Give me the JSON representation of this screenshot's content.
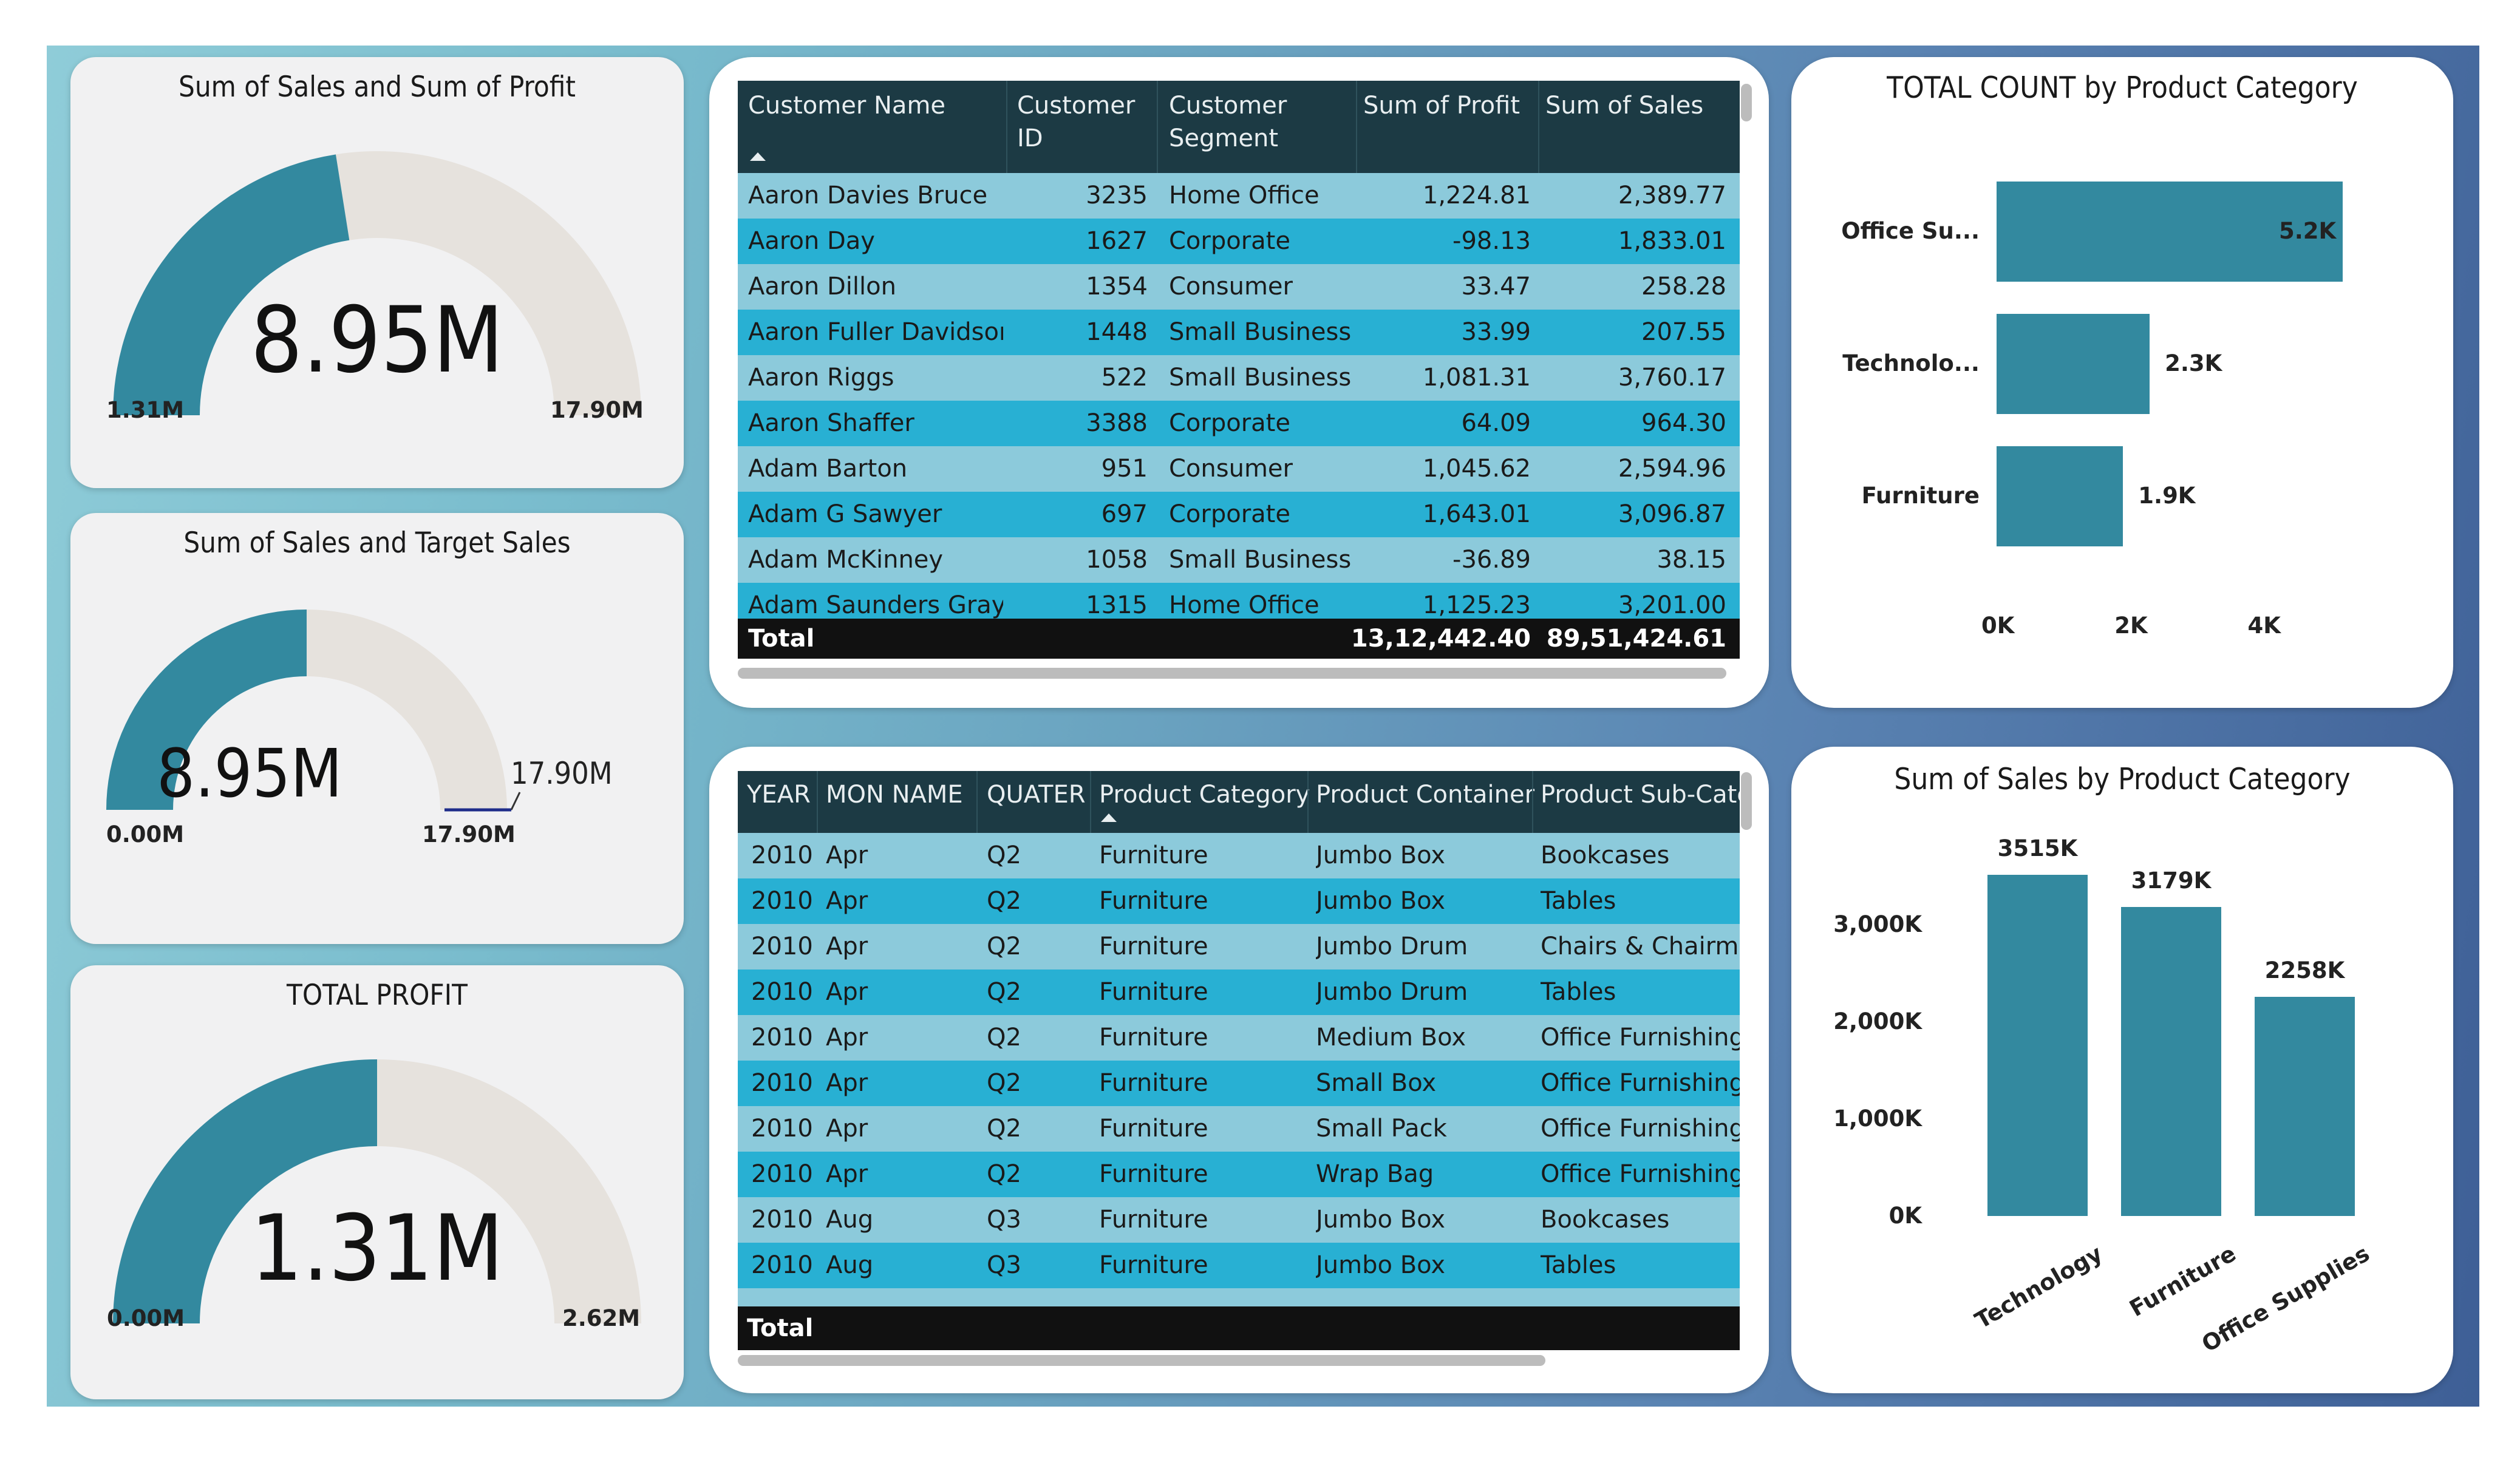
{
  "gauges": [
    {
      "title": "Sum of Sales and Sum of Profit",
      "value": "8.95M",
      "min": "1.31M",
      "max": "17.90M",
      "fill": 0.45
    },
    {
      "title": "Sum of Sales and Target Sales",
      "value": "8.95M",
      "min": "0.00M",
      "max": "17.90M",
      "target_label": "17.90M",
      "target_callout": "17.90M",
      "fill": 0.5
    },
    {
      "title": "TOTAL PROFIT",
      "value": "1.31M",
      "min": "0.00M",
      "max": "2.62M",
      "fill": 0.5
    }
  ],
  "customer_table": {
    "headers": [
      "Customer Name",
      "Customer ID",
      "Customer Segment",
      "Sum of Profit",
      "Sum of Sales"
    ],
    "rows": [
      [
        "Aaron Davies Bruce",
        "3235",
        "Home Office",
        "1,224.81",
        "2,389.77"
      ],
      [
        "Aaron Day",
        "1627",
        "Corporate",
        "-98.13",
        "1,833.01"
      ],
      [
        "Aaron Dillon",
        "1354",
        "Consumer",
        "33.47",
        "258.28"
      ],
      [
        "Aaron Fuller Davidson",
        "1448",
        "Small Business",
        "33.99",
        "207.55"
      ],
      [
        "Aaron Riggs",
        "522",
        "Small Business",
        "1,081.31",
        "3,760.17"
      ],
      [
        "Aaron Shaffer",
        "3388",
        "Corporate",
        "64.09",
        "964.30"
      ],
      [
        "Adam Barton",
        "951",
        "Consumer",
        "1,045.62",
        "2,594.96"
      ],
      [
        "Adam G Sawyer",
        "697",
        "Corporate",
        "1,643.01",
        "3,096.87"
      ],
      [
        "Adam McKinney",
        "1058",
        "Small Business",
        "-36.89",
        "38.15"
      ],
      [
        "Adam Saunders Gray",
        "1315",
        "Home Office",
        "1,125.23",
        "3,201.00"
      ]
    ],
    "total_label": "Total",
    "total_profit": "13,12,442.40",
    "total_sales": "89,51,424.61"
  },
  "product_table": {
    "headers": [
      "YEAR",
      "MON NAME",
      "QUATER",
      "Product Category",
      "Product Container",
      "Product Sub-Category"
    ],
    "rows": [
      [
        "2010",
        "Apr",
        "Q2",
        "Furniture",
        "Jumbo Box",
        "Bookcases"
      ],
      [
        "2010",
        "Apr",
        "Q2",
        "Furniture",
        "Jumbo Box",
        "Tables"
      ],
      [
        "2010",
        "Apr",
        "Q2",
        "Furniture",
        "Jumbo Drum",
        "Chairs & Chairmats"
      ],
      [
        "2010",
        "Apr",
        "Q2",
        "Furniture",
        "Jumbo Drum",
        "Tables"
      ],
      [
        "2010",
        "Apr",
        "Q2",
        "Furniture",
        "Medium Box",
        "Office Furnishings"
      ],
      [
        "2010",
        "Apr",
        "Q2",
        "Furniture",
        "Small Box",
        "Office Furnishings"
      ],
      [
        "2010",
        "Apr",
        "Q2",
        "Furniture",
        "Small Pack",
        "Office Furnishings"
      ],
      [
        "2010",
        "Apr",
        "Q2",
        "Furniture",
        "Wrap Bag",
        "Office Furnishings"
      ],
      [
        "2010",
        "Aug",
        "Q3",
        "Furniture",
        "Jumbo Box",
        "Bookcases"
      ],
      [
        "2010",
        "Aug",
        "Q3",
        "Furniture",
        "Jumbo Box",
        "Tables"
      ]
    ],
    "total_label": "Total"
  },
  "chart_data": [
    {
      "type": "bar",
      "orientation": "horizontal",
      "title": "TOTAL COUNT by Product Category",
      "categories": [
        "Office Su...",
        "Technolo...",
        "Furniture"
      ],
      "values": [
        5200,
        2300,
        1900
      ],
      "data_labels": [
        "5.2K",
        "2.3K",
        "1.9K"
      ],
      "xticks": [
        "0K",
        "2K",
        "4K"
      ],
      "xlim": [
        0,
        5600
      ],
      "color": "#33899f"
    },
    {
      "type": "bar",
      "orientation": "vertical",
      "title": "Sum of Sales by Product Category",
      "categories": [
        "Technology",
        "Furniture",
        "Office Supplies"
      ],
      "values": [
        3515,
        3179,
        2258
      ],
      "data_labels": [
        "3515K",
        "3179K",
        "2258K"
      ],
      "yticks": [
        "0K",
        "1,000K",
        "2,000K",
        "3,000K"
      ],
      "ylim": [
        0,
        3600
      ],
      "color": "#33899f"
    }
  ],
  "colors": {
    "accent": "#33899f",
    "gauge_track": "#e6e2dd",
    "header": "#1c3a44",
    "row_light": "#8ccadb",
    "row_dark": "#28b0d3",
    "total": "#111111"
  }
}
